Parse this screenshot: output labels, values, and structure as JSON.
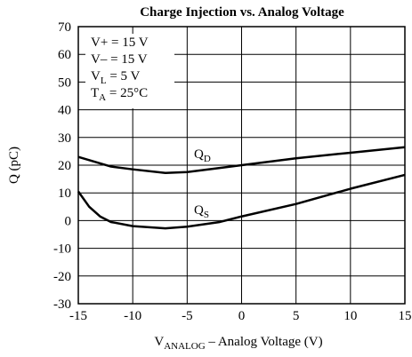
{
  "chart_data": {
    "type": "line",
    "title": "Charge Injection vs. Analog Voltage",
    "ylabel": "Q (pC)",
    "xlabel": [
      {
        "text": "V"
      },
      {
        "text": "ANALOG",
        "sub": true
      },
      {
        "text": " – Analog Voltage (V)"
      }
    ],
    "annotations": [
      [
        {
          "text": "V+ = 15 V"
        }
      ],
      [
        {
          "text": "V– = 15 V"
        }
      ],
      [
        {
          "text": "V"
        },
        {
          "text": "L",
          "sub": true
        },
        {
          "text": " = 5 V"
        }
      ],
      [
        {
          "text": "T"
        },
        {
          "text": "A",
          "sub": true
        },
        {
          "text": " = 25°C"
        }
      ]
    ],
    "series": [
      {
        "label": [
          {
            "text": "Q"
          },
          {
            "text": "D",
            "sub": true
          }
        ],
        "color": "#000000",
        "x": [
          -15,
          -12,
          -10,
          -7,
          -5,
          -2,
          0,
          5,
          10,
          15
        ],
        "values": [
          23,
          19.5,
          18.5,
          17.2,
          17.5,
          19,
          20,
          22.5,
          24.5,
          26.5
        ]
      },
      {
        "label": [
          {
            "text": "Q"
          },
          {
            "text": "S",
            "sub": true
          }
        ],
        "color": "#000000",
        "x": [
          -15,
          -14,
          -13,
          -12,
          -10,
          -7,
          -5,
          -2,
          0,
          5,
          10,
          15
        ],
        "values": [
          10.5,
          5,
          1.5,
          -0.5,
          -2,
          -2.8,
          -2.2,
          -0.5,
          1.5,
          6,
          11.5,
          16.5
        ]
      }
    ],
    "xlim": [
      -15,
      15
    ],
    "xticks": [
      -15,
      -10,
      -5,
      0,
      5,
      10,
      15
    ],
    "ylim": [
      -30,
      70
    ],
    "yticks": [
      -30,
      -20,
      -10,
      0,
      10,
      20,
      30,
      40,
      50,
      60,
      70
    ],
    "grid": true
  }
}
